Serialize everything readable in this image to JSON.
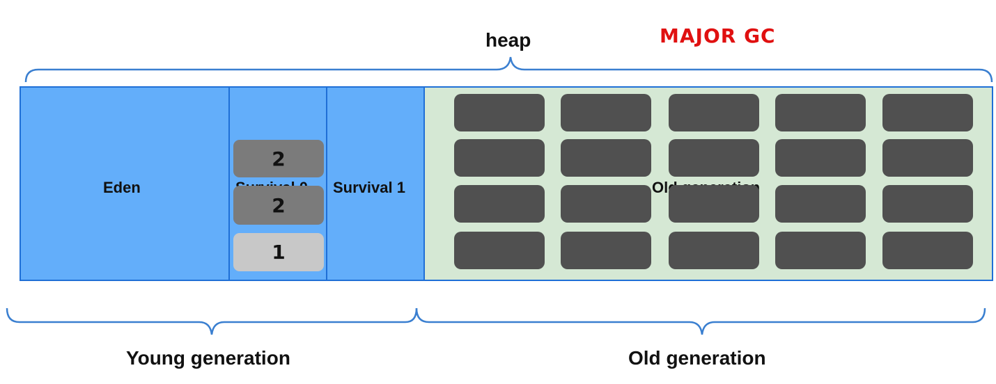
{
  "header": {
    "heap_label": "heap",
    "gc_label": "MAJOR GC",
    "gc_color": "#e01010"
  },
  "regions": {
    "eden": {
      "label": "Eden",
      "color": "#63aefa"
    },
    "survival0": {
      "label": "Survival 0",
      "color": "#63aefa",
      "objects": [
        {
          "age": "2",
          "color": "#7b7b7b"
        },
        {
          "age": "2",
          "color": "#7b7b7b"
        },
        {
          "age": "1",
          "color": "#c8c8c8"
        }
      ]
    },
    "survival1": {
      "label": "Survival 1",
      "color": "#63aefa"
    },
    "old": {
      "label": "Old generation",
      "color": "#d5e8d4",
      "object_color": "#505050",
      "object_rows": 4,
      "object_cols": 5
    }
  },
  "footer": {
    "young_label": "Young generation",
    "old_label": "Old generation"
  },
  "brace_color": "#3a7fd0"
}
